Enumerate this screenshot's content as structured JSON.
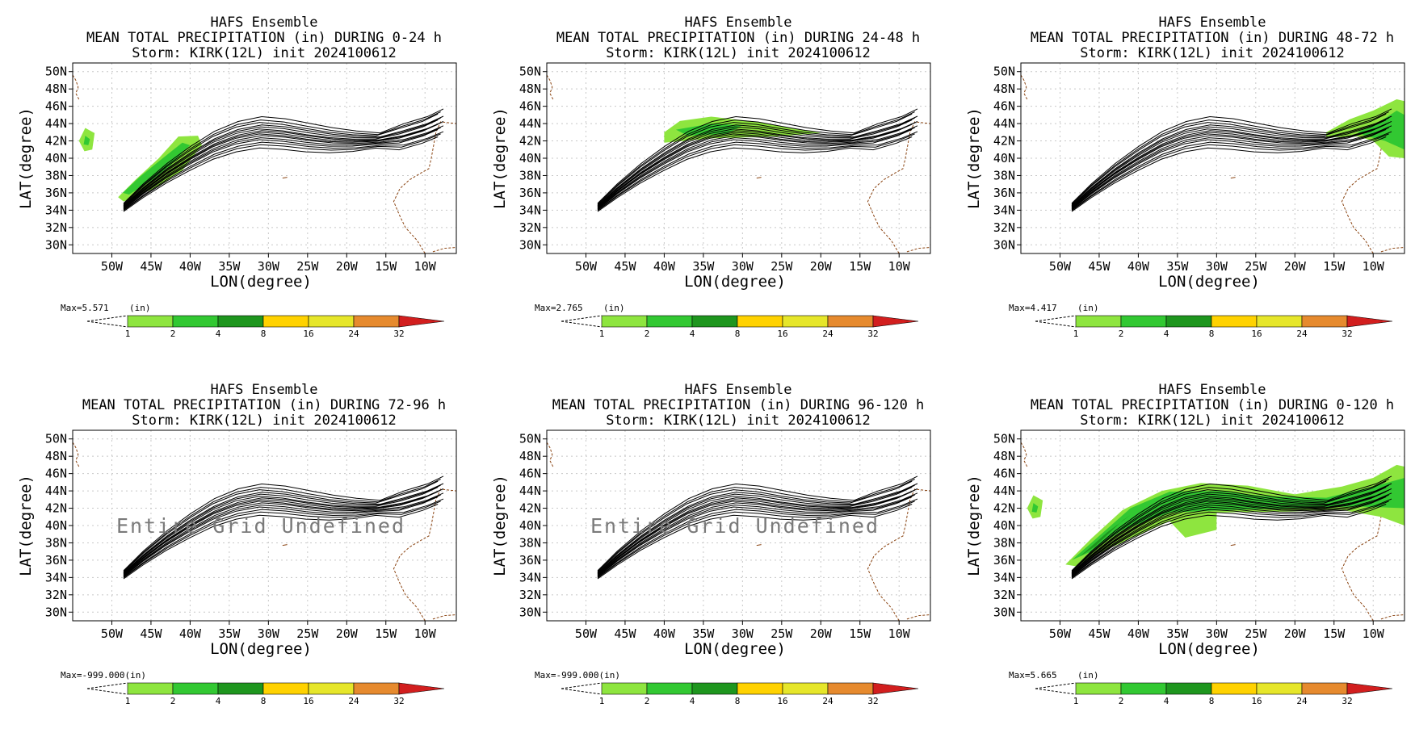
{
  "colors": {
    "bg": "#ffffff",
    "track": "#000000",
    "coast": "#8b4513",
    "grid": "#c8c8c8",
    "precip": [
      "#8ee53f",
      "#32c832",
      "#1e961e",
      "#ffd200",
      "#e6e62a",
      "#e68a2e",
      "#d21e1e"
    ]
  },
  "common": {
    "model_title": "HAFS Ensemble",
    "storm_line": "Storm: KIRK(12L) init 2024100612",
    "x_axis_label": "LON(degree)",
    "y_axis_label": "LAT(degree)",
    "lat_ticks": [
      "50N",
      "48N",
      "46N",
      "44N",
      "42N",
      "40N",
      "38N",
      "36N",
      "34N",
      "32N",
      "30N"
    ],
    "lon_ticks": [
      "50W",
      "45W",
      "40W",
      "35W",
      "30W",
      "25W",
      "20W",
      "15W",
      "10W"
    ],
    "colorbar_levels": [
      "1",
      "2",
      "4",
      "8",
      "16",
      "24",
      "32"
    ],
    "undefined_text": "Entire Grid Undefined"
  },
  "panels": [
    {
      "subtitle": "MEAN TOTAL PRECIPITATION (in) DURING  0-24 h",
      "max_label": "Max=5.571",
      "max_unit": "(in)",
      "undefined": false
    },
    {
      "subtitle": "MEAN TOTAL PRECIPITATION (in) DURING 24-48 h",
      "max_label": "Max=2.765",
      "max_unit": "(in)",
      "undefined": false
    },
    {
      "subtitle": "MEAN TOTAL PRECIPITATION (in) DURING 48-72 h",
      "max_label": "Max=4.417",
      "max_unit": "(in)",
      "undefined": false
    },
    {
      "subtitle": "MEAN TOTAL PRECIPITATION (in) DURING 72-96 h",
      "max_label": "Max=-999.000(in)",
      "max_unit": "",
      "undefined": true
    },
    {
      "subtitle": "MEAN TOTAL PRECIPITATION (in) DURING 96-120 h",
      "max_label": "Max=-999.000(in)",
      "max_unit": "",
      "undefined": true
    },
    {
      "subtitle": "MEAN TOTAL PRECIPITATION (in) DURING 0-120 h",
      "max_label": "Max=5.665",
      "max_unit": "(in)",
      "undefined": false
    }
  ],
  "chart_data": {
    "type": "line",
    "xlabel": "LON(degree)",
    "ylabel": "LAT(degree)",
    "xlim": [
      -55,
      -6
    ],
    "ylim": [
      29,
      51
    ],
    "grid": true,
    "precip_levels_in": [
      1,
      2,
      4,
      8,
      16,
      24,
      32
    ],
    "track_mean": {
      "lon": [
        -48.5,
        -46,
        -43,
        -40,
        -37,
        -34,
        -31,
        -28,
        -25,
        -22,
        -19,
        -16,
        -13,
        -10,
        -8
      ],
      "lat": [
        34.3,
        36.2,
        38.2,
        39.9,
        41.4,
        42.4,
        42.9,
        42.7,
        42.3,
        42.0,
        41.9,
        42.0,
        42.4,
        43.2,
        44.0
      ]
    },
    "track_member_offsets_deg": [
      -0.9,
      -0.7,
      -0.55,
      -0.4,
      -0.28,
      -0.15,
      -0.05,
      0.05,
      0.15,
      0.25,
      0.38,
      0.5,
      0.65,
      0.8,
      1.0
    ]
  }
}
